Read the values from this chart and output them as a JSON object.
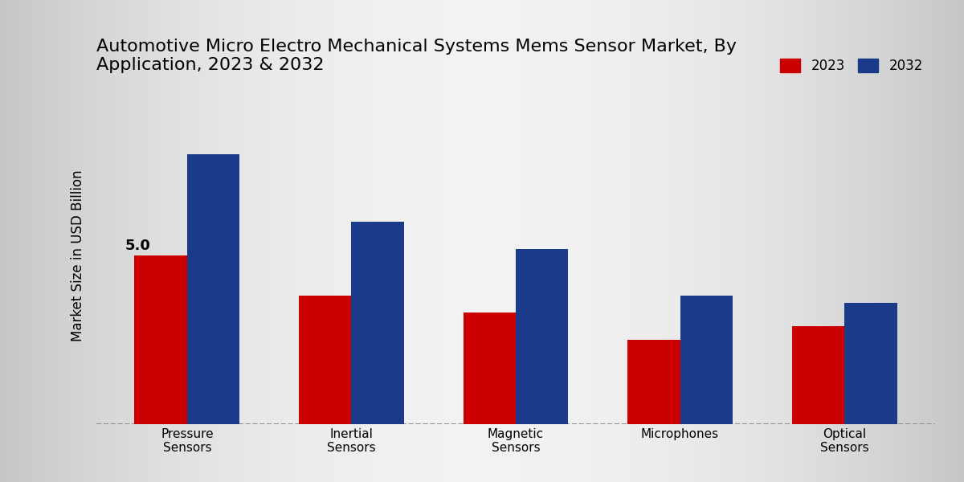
{
  "title": "Automotive Micro Electro Mechanical Systems Mems Sensor Market, By\nApplication, 2023 & 2032",
  "ylabel": "Market Size in USD Billion",
  "categories": [
    "Pressure\nSensors",
    "Inertial\nSensors",
    "Magnetic\nSensors",
    "Microphones",
    "Optical\nSensors"
  ],
  "values_2023": [
    5.0,
    3.8,
    3.3,
    2.5,
    2.9
  ],
  "values_2032": [
    8.0,
    6.0,
    5.2,
    3.8,
    3.6
  ],
  "color_2023": "#cc0000",
  "color_2032": "#1a3a8a",
  "annotation_label": "5.0",
  "annotation_index": 0,
  "legend_labels": [
    "2023",
    "2032"
  ],
  "bar_width": 0.32,
  "ylim": [
    0,
    10
  ],
  "title_fontsize": 16,
  "label_fontsize": 12,
  "tick_fontsize": 11,
  "bg_left": "#c8c8c8",
  "bg_right": "#e8e8e8",
  "bg_center": "#f0f0f0"
}
